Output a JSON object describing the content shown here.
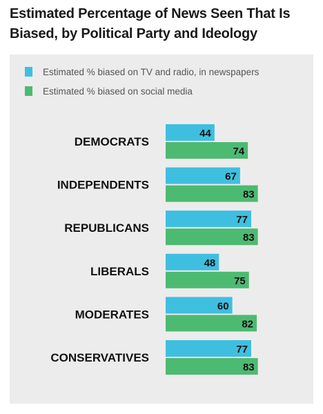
{
  "chart_data": {
    "type": "bar",
    "orientation": "horizontal",
    "title": "Estimated Percentage of News Seen That Is Biased, by Political Party and Ideology",
    "categories": [
      "DEMOCRATS",
      "INDEPENDENTS",
      "REPUBLICANS",
      "LIBERALS",
      "MODERATES",
      "CONSERVATIVES"
    ],
    "series": [
      {
        "name": "Estimated % biased on TV and radio, in newspapers",
        "color": "#3fbfdf",
        "values": [
          44,
          67,
          77,
          48,
          60,
          77
        ]
      },
      {
        "name": "Estimated % biased on social media",
        "color": "#4dba72",
        "values": [
          74,
          83,
          83,
          75,
          82,
          83
        ]
      }
    ],
    "xlim": [
      0,
      100
    ],
    "grid": false,
    "legend": "top-left",
    "data_labels": true
  }
}
